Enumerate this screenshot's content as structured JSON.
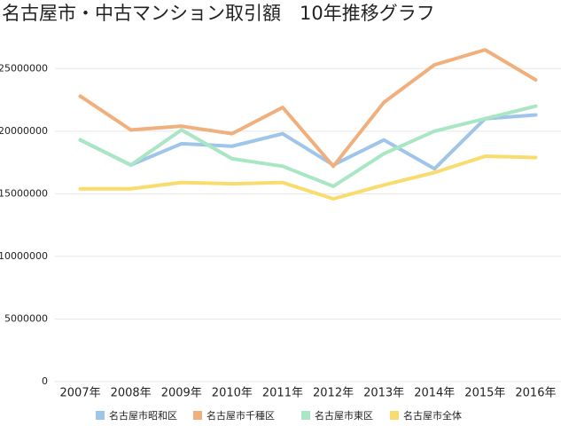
{
  "chart_data": {
    "type": "line",
    "title": "名古屋市・中古マンション取引額　10年推移グラフ",
    "categories": [
      "2007年",
      "2008年",
      "2009年",
      "2010年",
      "2011年",
      "2012年",
      "2013年",
      "2014年",
      "2015年",
      "2016年"
    ],
    "series": [
      {
        "name": "名古屋市昭和区",
        "color": "#9fc5e8",
        "values": [
          19300000,
          17300000,
          19000000,
          18800000,
          19800000,
          17300000,
          19300000,
          17000000,
          21000000,
          21300000
        ]
      },
      {
        "name": "名古屋市千種区",
        "color": "#f0b07e",
        "values": [
          22800000,
          20100000,
          20400000,
          19800000,
          21900000,
          17200000,
          22300000,
          25300000,
          26500000,
          24100000
        ]
      },
      {
        "name": "名古屋市東区",
        "color": "#a8e6c4",
        "values": [
          19300000,
          17300000,
          20100000,
          17800000,
          17200000,
          15600000,
          18200000,
          20000000,
          21000000,
          22000000
        ]
      },
      {
        "name": "名古屋市全体",
        "color": "#fadc6e",
        "values": [
          15400000,
          15400000,
          15900000,
          15800000,
          15900000,
          14600000,
          15700000,
          16700000,
          18000000,
          17900000
        ]
      }
    ],
    "ylim": [
      0,
      27500000
    ],
    "yticks": [
      0,
      5000000,
      10000000,
      15000000,
      20000000,
      25000000
    ],
    "grid": true
  }
}
